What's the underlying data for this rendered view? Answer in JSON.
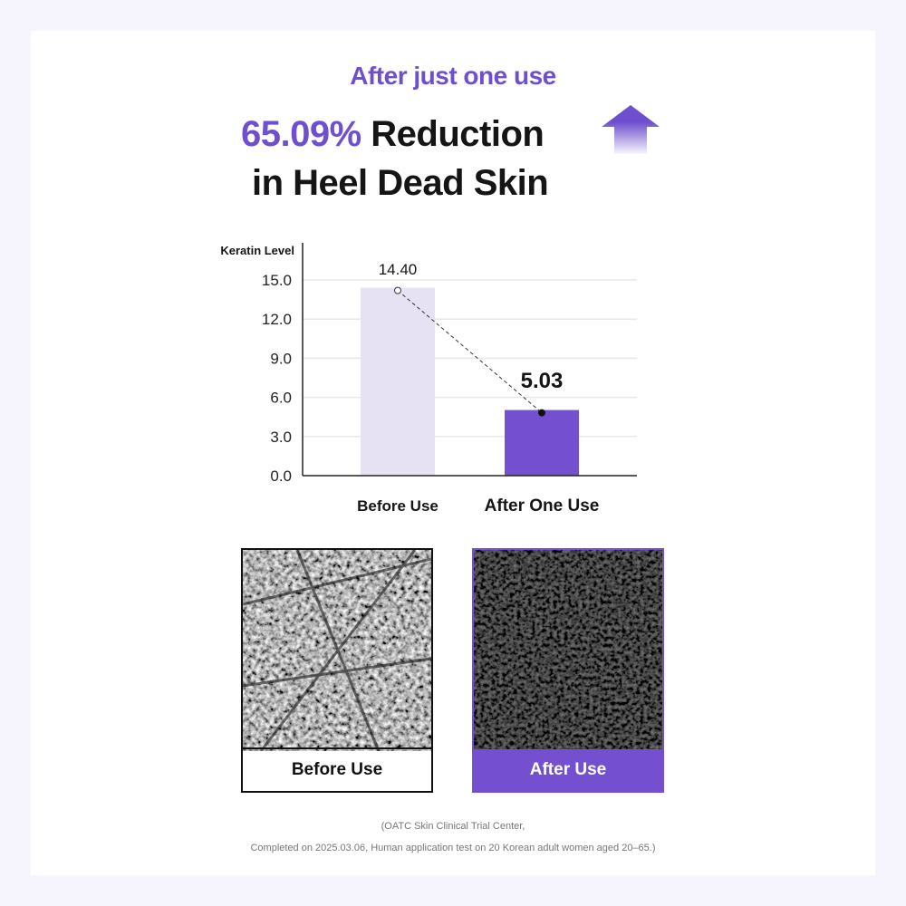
{
  "header": {
    "subtitle": "After just one use",
    "headline_percent": "65.09%",
    "headline_rest": "Reduction",
    "headline_line2": "in Heel Dead Skin",
    "arrow_icon": "up-arrow-icon"
  },
  "colors": {
    "accent": "#7450d0",
    "before_bar": "#e6e2f4",
    "text": "#151515"
  },
  "chart_data": {
    "type": "bar",
    "ylabel": "Keratin Level",
    "categories": [
      "Before Use",
      "After One Use"
    ],
    "values": [
      14.4,
      5.03
    ],
    "data_labels": [
      "14.40",
      "5.03"
    ],
    "ylim": [
      0,
      15
    ],
    "yticks": [
      "0.0",
      "3.0",
      "6.0",
      "9.0",
      "12.0",
      "15.0"
    ],
    "grid": true,
    "connector": "dashed line between bar tops"
  },
  "photos": [
    {
      "label": "Before Use"
    },
    {
      "label": "After Use"
    }
  ],
  "footnote": {
    "line1": "(OATC Skin Clinical Trial Center,",
    "line2": "Completed on 2025.03.06, Human application test on 20 Korean adult women aged 20–65.)"
  }
}
